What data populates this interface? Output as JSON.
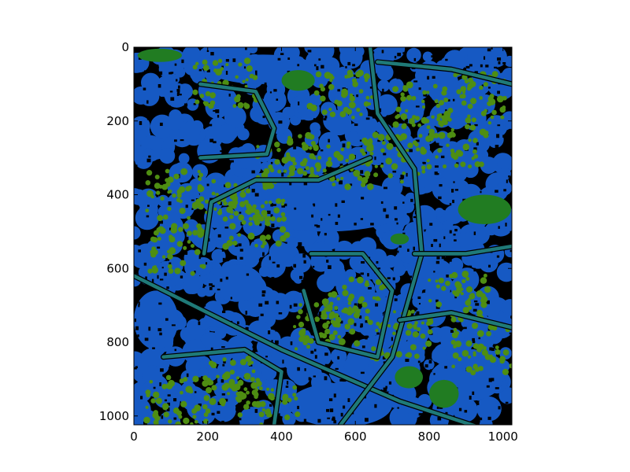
{
  "chart_data": {
    "type": "heatmap",
    "title": "",
    "xlabel": "",
    "ylabel": "",
    "image_size": [
      1024,
      1024
    ],
    "xlim": [
      0,
      1024
    ],
    "ylim": [
      1024,
      0
    ],
    "y_axis_inverted": true,
    "x_ticks": [
      0,
      200,
      400,
      600,
      800,
      1000
    ],
    "y_ticks": [
      0,
      200,
      400,
      600,
      800,
      1000
    ],
    "grid": false,
    "legend": "none",
    "class_colors": {
      "background": "#000000",
      "open_ground": "#1659c3",
      "vegetation": "#217c22",
      "trees": "#4e8e12",
      "roads": "#1f7a78"
    },
    "regions": {
      "roads": [
        {
          "label": "main-diagonal",
          "points": [
            [
              0,
              620
            ],
            [
              400,
              820
            ],
            [
              720,
              960
            ],
            [
              1024,
              1060
            ]
          ]
        },
        {
          "label": "north-south",
          "points": [
            [
              640,
              0
            ],
            [
              660,
              180
            ],
            [
              760,
              330
            ],
            [
              780,
              560
            ],
            [
              700,
              840
            ],
            [
              560,
              1024
            ]
          ]
        },
        {
          "label": "east-arc",
          "points": [
            [
              760,
              560
            ],
            [
              900,
              560
            ],
            [
              1024,
              540
            ]
          ]
        },
        {
          "label": "west-ring",
          "points": [
            [
              190,
              560
            ],
            [
              210,
              420
            ],
            [
              330,
              360
            ],
            [
              500,
              360
            ],
            [
              640,
              300
            ]
          ]
        },
        {
          "label": "north-loop",
          "points": [
            [
              180,
              100
            ],
            [
              330,
              120
            ],
            [
              380,
              220
            ],
            [
              360,
              290
            ],
            [
              180,
              300
            ]
          ]
        },
        {
          "label": "south-loop",
          "points": [
            [
              480,
              560
            ],
            [
              620,
              560
            ],
            [
              700,
              660
            ],
            [
              660,
              840
            ],
            [
              500,
              800
            ],
            [
              460,
              660
            ]
          ]
        },
        {
          "label": "southwest-loop",
          "points": [
            [
              80,
              840
            ],
            [
              300,
              820
            ],
            [
              400,
              880
            ],
            [
              380,
              1024
            ]
          ]
        },
        {
          "label": "east-south-loop",
          "points": [
            [
              720,
              740
            ],
            [
              860,
              720
            ],
            [
              1024,
              760
            ]
          ]
        },
        {
          "label": "northeast-loop",
          "points": [
            [
              660,
              40
            ],
            [
              860,
              60
            ],
            [
              1024,
              100
            ]
          ]
        }
      ],
      "vegetation_patches": [
        {
          "label": "pond-north",
          "x": 445,
          "y": 90,
          "rx": 45,
          "ry": 28
        },
        {
          "label": "pond-east",
          "x": 950,
          "y": 440,
          "rx": 72,
          "ry": 40
        },
        {
          "label": "pond-south-1",
          "x": 745,
          "y": 895,
          "rx": 38,
          "ry": 30
        },
        {
          "label": "pond-south-2",
          "x": 840,
          "y": 940,
          "rx": 40,
          "ry": 38
        },
        {
          "label": "strip-north",
          "x": 70,
          "y": 22,
          "rx": 60,
          "ry": 18
        },
        {
          "label": "patch-mid",
          "x": 720,
          "y": 520,
          "rx": 25,
          "ry": 15
        }
      ],
      "tree_clusters": [
        [
          250,
          100
        ],
        [
          560,
          130
        ],
        [
          780,
          160
        ],
        [
          920,
          130
        ],
        [
          880,
          260
        ],
        [
          120,
          400
        ],
        [
          300,
          420
        ],
        [
          420,
          300
        ],
        [
          560,
          320
        ],
        [
          700,
          300
        ],
        [
          880,
          680
        ],
        [
          950,
          820
        ],
        [
          600,
          690
        ],
        [
          520,
          760
        ],
        [
          260,
          910
        ],
        [
          120,
          960
        ],
        [
          360,
          980
        ],
        [
          330,
          480
        ],
        [
          120,
          550
        ],
        [
          720,
          780
        ]
      ],
      "open_ground_blobs": [
        {
          "x": 520,
          "y": 430,
          "rx": 230,
          "ry": 70
        },
        {
          "x": 560,
          "y": 970,
          "rx": 140,
          "ry": 60
        },
        {
          "x": 350,
          "y": 60,
          "rx": 150,
          "ry": 40
        },
        {
          "x": 60,
          "y": 740,
          "rx": 60,
          "ry": 80
        },
        {
          "x": 900,
          "y": 900,
          "rx": 100,
          "ry": 60
        },
        {
          "x": 280,
          "y": 640,
          "rx": 70,
          "ry": 50
        }
      ]
    }
  }
}
